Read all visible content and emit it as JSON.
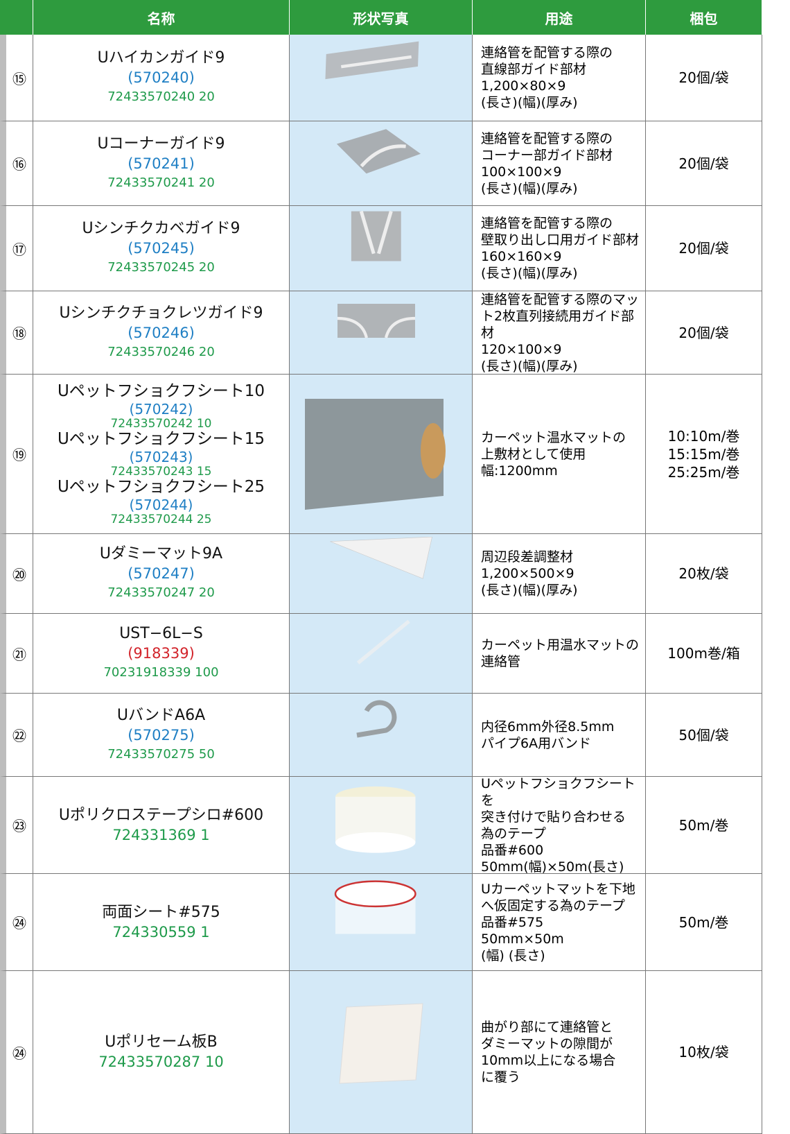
{
  "header": {
    "columns": [
      "名称",
      "形状写真",
      "用途",
      "梱包"
    ]
  },
  "rows": [
    {
      "number": "⑮",
      "name": [
        {
          "text": "Uハイカンガイド9",
          "color": "#111111"
        },
        {
          "text": "(570240)",
          "color": "#1f7fc4"
        },
        {
          "text": "72433570240 20",
          "color": "#1e9a4a"
        }
      ],
      "usage": [
        "連絡管を配管する際の",
        "直線部ガイド部材",
        "1,200×80×9",
        "(長さ)(幅)(厚み)"
      ],
      "packaging": [
        "20個/袋"
      ]
    },
    {
      "number": "⑯",
      "name": [
        {
          "text": "Uコーナーガイド9",
          "color": "#111111"
        },
        {
          "text": "(570241)",
          "color": "#1f7fc4"
        },
        {
          "text": "72433570241 20",
          "color": "#1e9a4a"
        }
      ],
      "usage": [
        "連絡管を配管する際の",
        "コーナー部ガイド部材",
        "100×100×9",
        "(長さ)(幅)(厚み)"
      ],
      "packaging": [
        "20個/袋"
      ]
    },
    {
      "number": "⑰",
      "name": [
        {
          "text": "Uシンチクカベガイド9",
          "color": "#111111"
        },
        {
          "text": "(570245)",
          "color": "#1f7fc4"
        },
        {
          "text": "72433570245 20",
          "color": "#1e9a4a"
        }
      ],
      "usage": [
        "連絡管を配管する際の",
        "壁取り出し口用ガイド部材",
        "160×160×9",
        "(長さ)(幅)(厚み)"
      ],
      "packaging": [
        "20個/袋"
      ]
    },
    {
      "number": "⑱",
      "name": [
        {
          "text": "Uシンチクチョクレツガイド9",
          "color": "#111111"
        },
        {
          "text": "(570246)",
          "color": "#1f7fc4"
        },
        {
          "text": "72433570246 20",
          "color": "#1e9a4a"
        }
      ],
      "usage": [
        "連絡管を配管する際のマッ",
        "ト2枚直列接続用ガイド部材",
        "120×100×9",
        "(長さ)(幅)(厚み)"
      ],
      "packaging": [
        "20個/袋"
      ]
    },
    {
      "number": "⑲",
      "name": [
        {
          "text": "Uペットフショクフシート10",
          "color": "#111111"
        },
        {
          "text": "(570242)",
          "color": "#1f7fc4"
        },
        {
          "text": "72433570242 10",
          "color": "#1e9a4a"
        },
        {
          "text": "Uペットフショクフシート15",
          "color": "#111111"
        },
        {
          "text": "(570243)",
          "color": "#1f7fc4"
        },
        {
          "text": "72433570243 15",
          "color": "#1e9a4a"
        },
        {
          "text": "Uペットフショクフシート25",
          "color": "#111111"
        },
        {
          "text": "(570244)",
          "color": "#1f7fc4"
        },
        {
          "text": "72433570244 25",
          "color": "#1e9a4a"
        }
      ],
      "usage": [
        "カーペット温水マットの",
        "上敷材として使用",
        "幅:1200mm"
      ],
      "packaging": [
        "10:10m/巻",
        "15:15m/巻",
        "25:25m/巻"
      ]
    },
    {
      "number": "⑳",
      "name": [
        {
          "text": "Uダミーマット9A",
          "color": "#111111"
        },
        {
          "text": "(570247)",
          "color": "#1f7fc4"
        },
        {
          "text": "72433570247 20",
          "color": "#1e9a4a"
        }
      ],
      "usage": [
        "周辺段差調整材",
        "1,200×500×9",
        "(長さ)(幅)(厚み)"
      ],
      "packaging": [
        "20枚/袋"
      ]
    },
    {
      "number": "㉑",
      "name": [
        {
          "text": "UST−6L−S",
          "color": "#111111"
        },
        {
          "text": "(918339)",
          "color": "#d2232a"
        },
        {
          "text": "70231918339 100",
          "color": "#1e9a4a"
        }
      ],
      "usage": [
        "カーペット用温水マットの",
        "連絡管"
      ],
      "packaging": [
        "100m巻/箱"
      ]
    },
    {
      "number": "㉒",
      "name": [
        {
          "text": "UバンドA6A",
          "color": "#111111"
        },
        {
          "text": "(570275)",
          "color": "#1f7fc4"
        },
        {
          "text": "72433570275 50",
          "color": "#1e9a4a"
        }
      ],
      "usage": [
        "内径6mm外径8.5mm",
        "パイプ6A用バンド"
      ],
      "packaging": [
        "50個/袋"
      ]
    },
    {
      "number": "㉓",
      "name": [
        {
          "text": "Uポリクロステープシロ#600",
          "color": "#111111"
        },
        {
          "text": "724331369 1",
          "color": "#1e9a4a"
        }
      ],
      "usage": [
        "Uペットフショクフシートを",
        "突き付けで貼り合わせる",
        "為のテープ",
        "品番#600",
        "50mm(幅)×50m(長さ)"
      ],
      "packaging": [
        "50m/巻"
      ]
    },
    {
      "number": "㉔",
      "name": [
        {
          "text": "両面シート#575",
          "color": "#111111"
        },
        {
          "text": "724330559 1",
          "color": "#1e9a4a"
        }
      ],
      "usage": [
        "Uカーペットマットを下地",
        "へ仮固定する為のテープ",
        "品番#575",
        "50mm×50m",
        "(幅)  (長さ)"
      ],
      "packaging": [
        "50m/巻"
      ]
    },
    {
      "number": "㉔",
      "name": [
        {
          "text": "Uポリセーム板B",
          "color": "#111111"
        },
        {
          "text": "72433570287 10",
          "color": "#1e9a4a"
        }
      ],
      "usage": [
        "曲がり部にて連絡管と",
        "ダミーマットの隙間が",
        "10mm以上になる場合",
        "に覆う"
      ],
      "packaging": [
        "10枚/袋"
      ]
    }
  ]
}
